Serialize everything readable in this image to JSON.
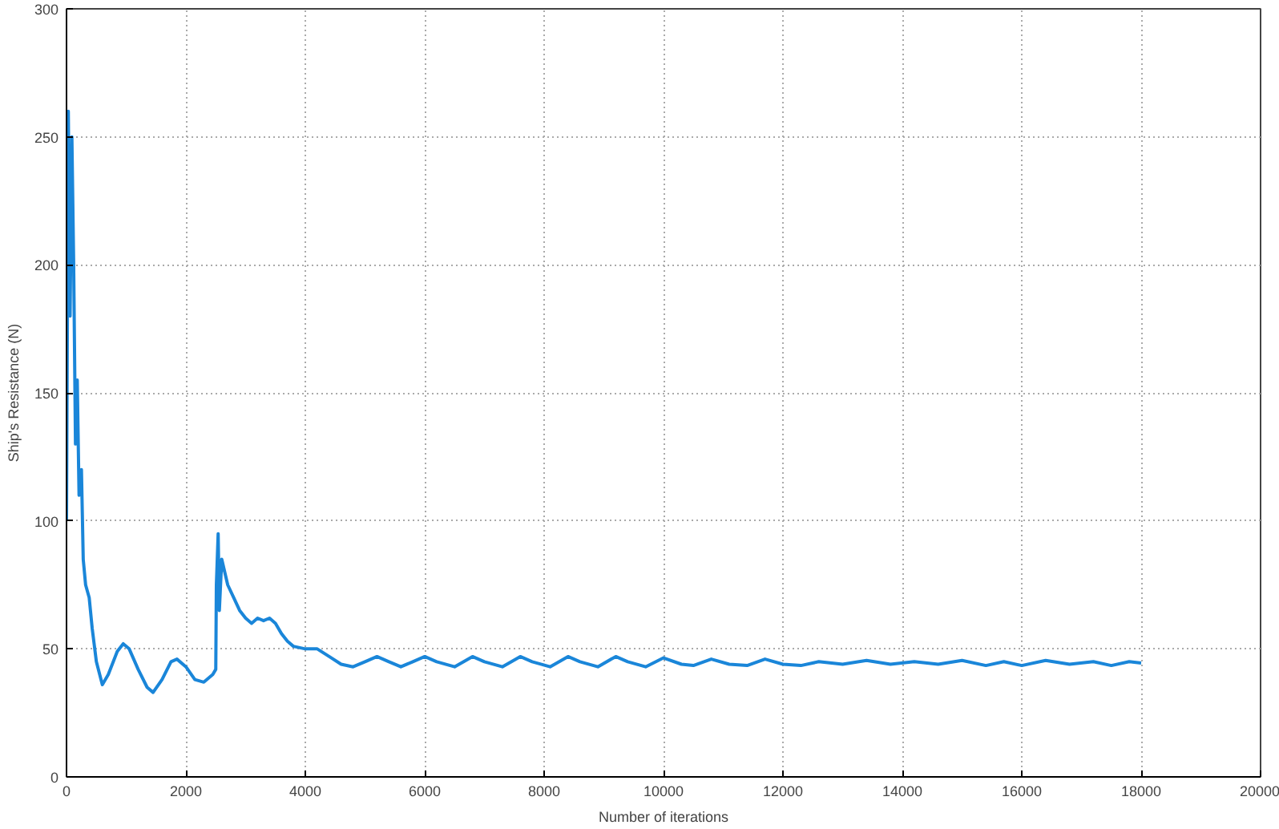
{
  "chart_data": {
    "type": "line",
    "xlabel": "Number of iterations",
    "ylabel": "Ship's Resistance (N)",
    "xlim": [
      0,
      20000
    ],
    "ylim": [
      0,
      300
    ],
    "xticks": [
      0,
      2000,
      4000,
      6000,
      8000,
      10000,
      12000,
      14000,
      16000,
      18000,
      20000
    ],
    "yticks": [
      0,
      50,
      100,
      150,
      200,
      250,
      300
    ],
    "grid": true,
    "line_style": "solid",
    "series": [
      {
        "color": "#1a86d9",
        "x": [
          0,
          30,
          60,
          90,
          120,
          150,
          180,
          210,
          250,
          280,
          320,
          380,
          430,
          500,
          600,
          700,
          850,
          950,
          1050,
          1200,
          1350,
          1450,
          1600,
          1750,
          1850,
          2000,
          2150,
          2300,
          2450,
          2500,
          2510,
          2540,
          2560,
          2600,
          2700,
          2800,
          2900,
          3000,
          3100,
          3200,
          3300,
          3400,
          3500,
          3600,
          3700,
          3800,
          4000,
          4200,
          4400,
          4600,
          4800,
          5000,
          5200,
          5400,
          5600,
          5800,
          6000,
          6200,
          6500,
          6800,
          7000,
          7300,
          7600,
          7800,
          8100,
          8400,
          8600,
          8900,
          9200,
          9400,
          9700,
          10000,
          10300,
          10500,
          10800,
          11100,
          11400,
          11700,
          12000,
          12300,
          12600,
          13000,
          13400,
          13800,
          14200,
          14600,
          15000,
          15400,
          15700,
          16000,
          16400,
          16800,
          17200,
          17500,
          17800,
          18000
        ],
        "values": [
          100,
          260,
          180,
          250,
          200,
          130,
          155,
          110,
          120,
          85,
          75,
          70,
          58,
          45,
          36,
          40,
          49,
          52,
          50,
          42,
          35,
          33,
          38,
          45,
          46,
          43,
          38,
          37,
          40,
          42,
          75,
          95,
          65,
          85,
          75,
          70,
          65,
          62,
          60,
          62,
          61,
          62,
          60,
          56,
          53,
          51,
          50,
          50,
          47,
          44,
          43,
          45,
          47,
          45,
          43,
          45,
          47,
          45,
          43,
          47,
          45,
          43,
          47,
          45,
          43,
          47,
          45,
          43,
          47,
          45,
          43,
          46.5,
          44,
          43.5,
          46,
          44,
          43.5,
          46,
          44,
          43.5,
          45,
          44,
          45.5,
          44,
          45,
          44,
          45.5,
          43.5,
          45,
          43.5,
          45.5,
          44,
          45,
          43.5,
          45,
          44.5
        ]
      }
    ]
  }
}
